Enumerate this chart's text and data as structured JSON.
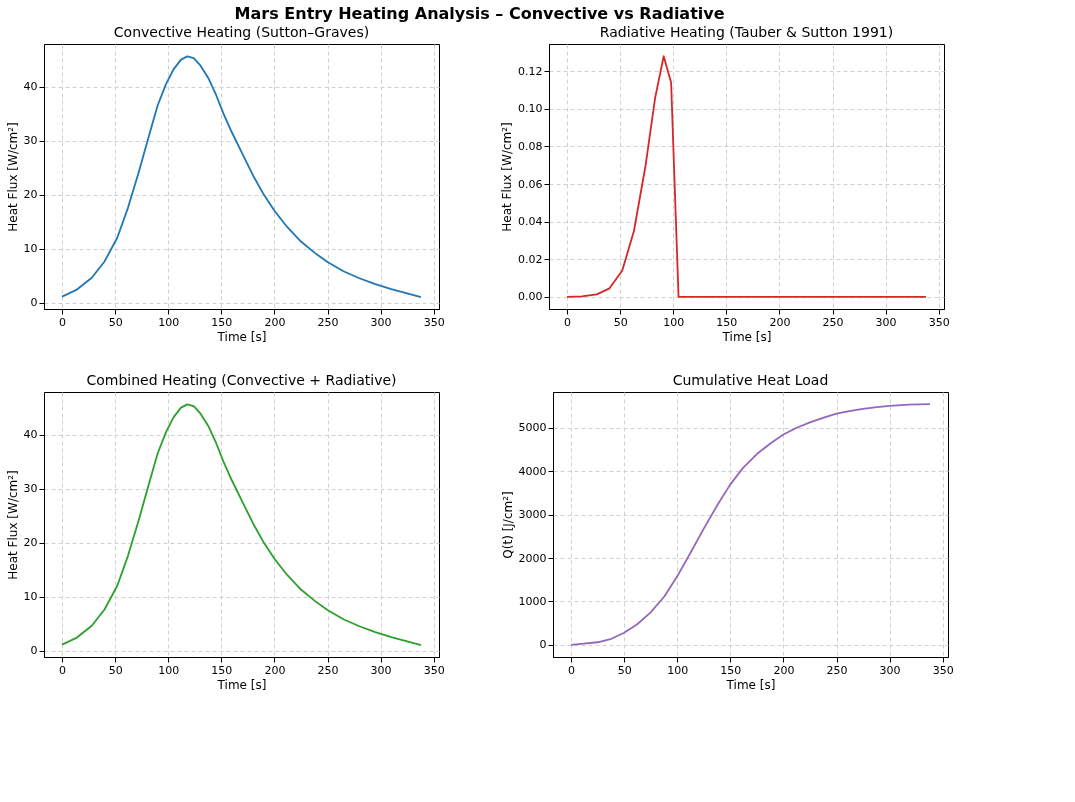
{
  "chart_data": [
    {
      "type": "line",
      "annotations": [
        "Mars Entry Heating Analysis – Convective vs Radiative"
      ],
      "title": "Convective Heating (Sutton–Graves)",
      "xlabel": "Time [s]",
      "ylabel": "Heat Flux [W/cm²]",
      "grid": true,
      "xlim": [
        -17,
        355
      ],
      "ylim": [
        -1.2,
        47.9
      ],
      "xticks": [
        0,
        50,
        100,
        150,
        200,
        250,
        300,
        350
      ],
      "yticks": [
        0,
        10,
        20,
        30,
        40
      ],
      "series": [
        {
          "color": "#1f77b4",
          "x": [
            0,
            14,
            28,
            40,
            52,
            62,
            72,
            82,
            90,
            98,
            105,
            112,
            118,
            124,
            130,
            138,
            145,
            152,
            160,
            170,
            180,
            190,
            200,
            212,
            225,
            238,
            250,
            265,
            280,
            295,
            310,
            325,
            338
          ],
          "values": [
            1.1,
            2.4,
            4.6,
            7.6,
            12,
            17.5,
            24,
            31,
            36.5,
            40.5,
            43.2,
            45,
            45.6,
            45.3,
            44,
            41.5,
            38.5,
            35,
            31.5,
            27.5,
            23.5,
            20,
            17,
            14,
            11.3,
            9.2,
            7.5,
            5.8,
            4.5,
            3.4,
            2.5,
            1.7,
            1.0
          ]
        }
      ]
    },
    {
      "type": "line",
      "title": "Radiative Heating (Tauber & Sutton 1991)",
      "xlabel": "Time [s]",
      "ylabel": "Heat Flux [W/cm²]",
      "grid": true,
      "xlim": [
        -17,
        355
      ],
      "ylim": [
        -0.0065,
        0.1345
      ],
      "xticks": [
        0,
        50,
        100,
        150,
        200,
        250,
        300,
        350
      ],
      "yticks": [
        {
          "value": 0,
          "label": "0.00"
        },
        {
          "value": 0.02,
          "label": "0.02"
        },
        {
          "value": 0.04,
          "label": "0.04"
        },
        {
          "value": 0.06,
          "label": "0.06"
        },
        {
          "value": 0.08,
          "label": "0.08"
        },
        {
          "value": 0.1,
          "label": "0.10"
        },
        {
          "value": 0.12,
          "label": "0.12"
        }
      ],
      "series": [
        {
          "color": "#d62728",
          "x": [
            0,
            14,
            28,
            40,
            52,
            63,
            74,
            83,
            91,
            98,
            105,
            338
          ],
          "values": [
            0,
            0.0002,
            0.0013,
            0.0045,
            0.014,
            0.035,
            0.07,
            0.106,
            0.128,
            0.114,
            0,
            0
          ]
        }
      ]
    },
    {
      "type": "line",
      "title": "Combined Heating (Convective + Radiative)",
      "xlabel": "Time [s]",
      "ylabel": "Heat Flux [W/cm²]",
      "grid": true,
      "xlim": [
        -17,
        355
      ],
      "ylim": [
        -1.2,
        47.9
      ],
      "xticks": [
        0,
        50,
        100,
        150,
        200,
        250,
        300,
        350
      ],
      "yticks": [
        0,
        10,
        20,
        30,
        40
      ],
      "series": [
        {
          "color": "#2ca02c",
          "x": [
            0,
            14,
            28,
            40,
            52,
            62,
            72,
            82,
            90,
            98,
            105,
            112,
            118,
            124,
            130,
            138,
            145,
            152,
            160,
            170,
            180,
            190,
            200,
            212,
            225,
            238,
            250,
            265,
            280,
            295,
            310,
            325,
            338
          ],
          "values": [
            1.1,
            2.4,
            4.6,
            7.6,
            12,
            17.5,
            24,
            31,
            36.5,
            40.5,
            43.2,
            45,
            45.6,
            45.3,
            44,
            41.5,
            38.5,
            35,
            31.5,
            27.5,
            23.5,
            20,
            17,
            14,
            11.3,
            9.2,
            7.5,
            5.8,
            4.5,
            3.4,
            2.5,
            1.7,
            1.0
          ]
        }
      ]
    },
    {
      "type": "line",
      "title": "Cumulative Heat Load",
      "xlabel": "Time [s]",
      "ylabel": "Q(t) [J/cm²]",
      "grid": true,
      "xlim": [
        -17,
        355
      ],
      "ylim": [
        -280,
        5830
      ],
      "xticks": [
        0,
        50,
        100,
        150,
        200,
        250,
        300,
        350
      ],
      "yticks": [
        0,
        1000,
        2000,
        3000,
        4000,
        5000
      ],
      "series": [
        {
          "color": "#9467bd",
          "x": [
            0,
            12,
            25,
            38,
            50,
            62,
            75,
            88,
            100,
            112,
            125,
            138,
            150,
            162,
            175,
            188,
            200,
            212,
            225,
            238,
            250,
            262,
            275,
            288,
            300,
            318,
            338
          ],
          "values": [
            0,
            30,
            60,
            140,
            280,
            470,
            750,
            1120,
            1580,
            2100,
            2680,
            3230,
            3700,
            4080,
            4400,
            4650,
            4850,
            5000,
            5130,
            5240,
            5330,
            5390,
            5440,
            5480,
            5510,
            5540,
            5550
          ]
        }
      ]
    }
  ]
}
